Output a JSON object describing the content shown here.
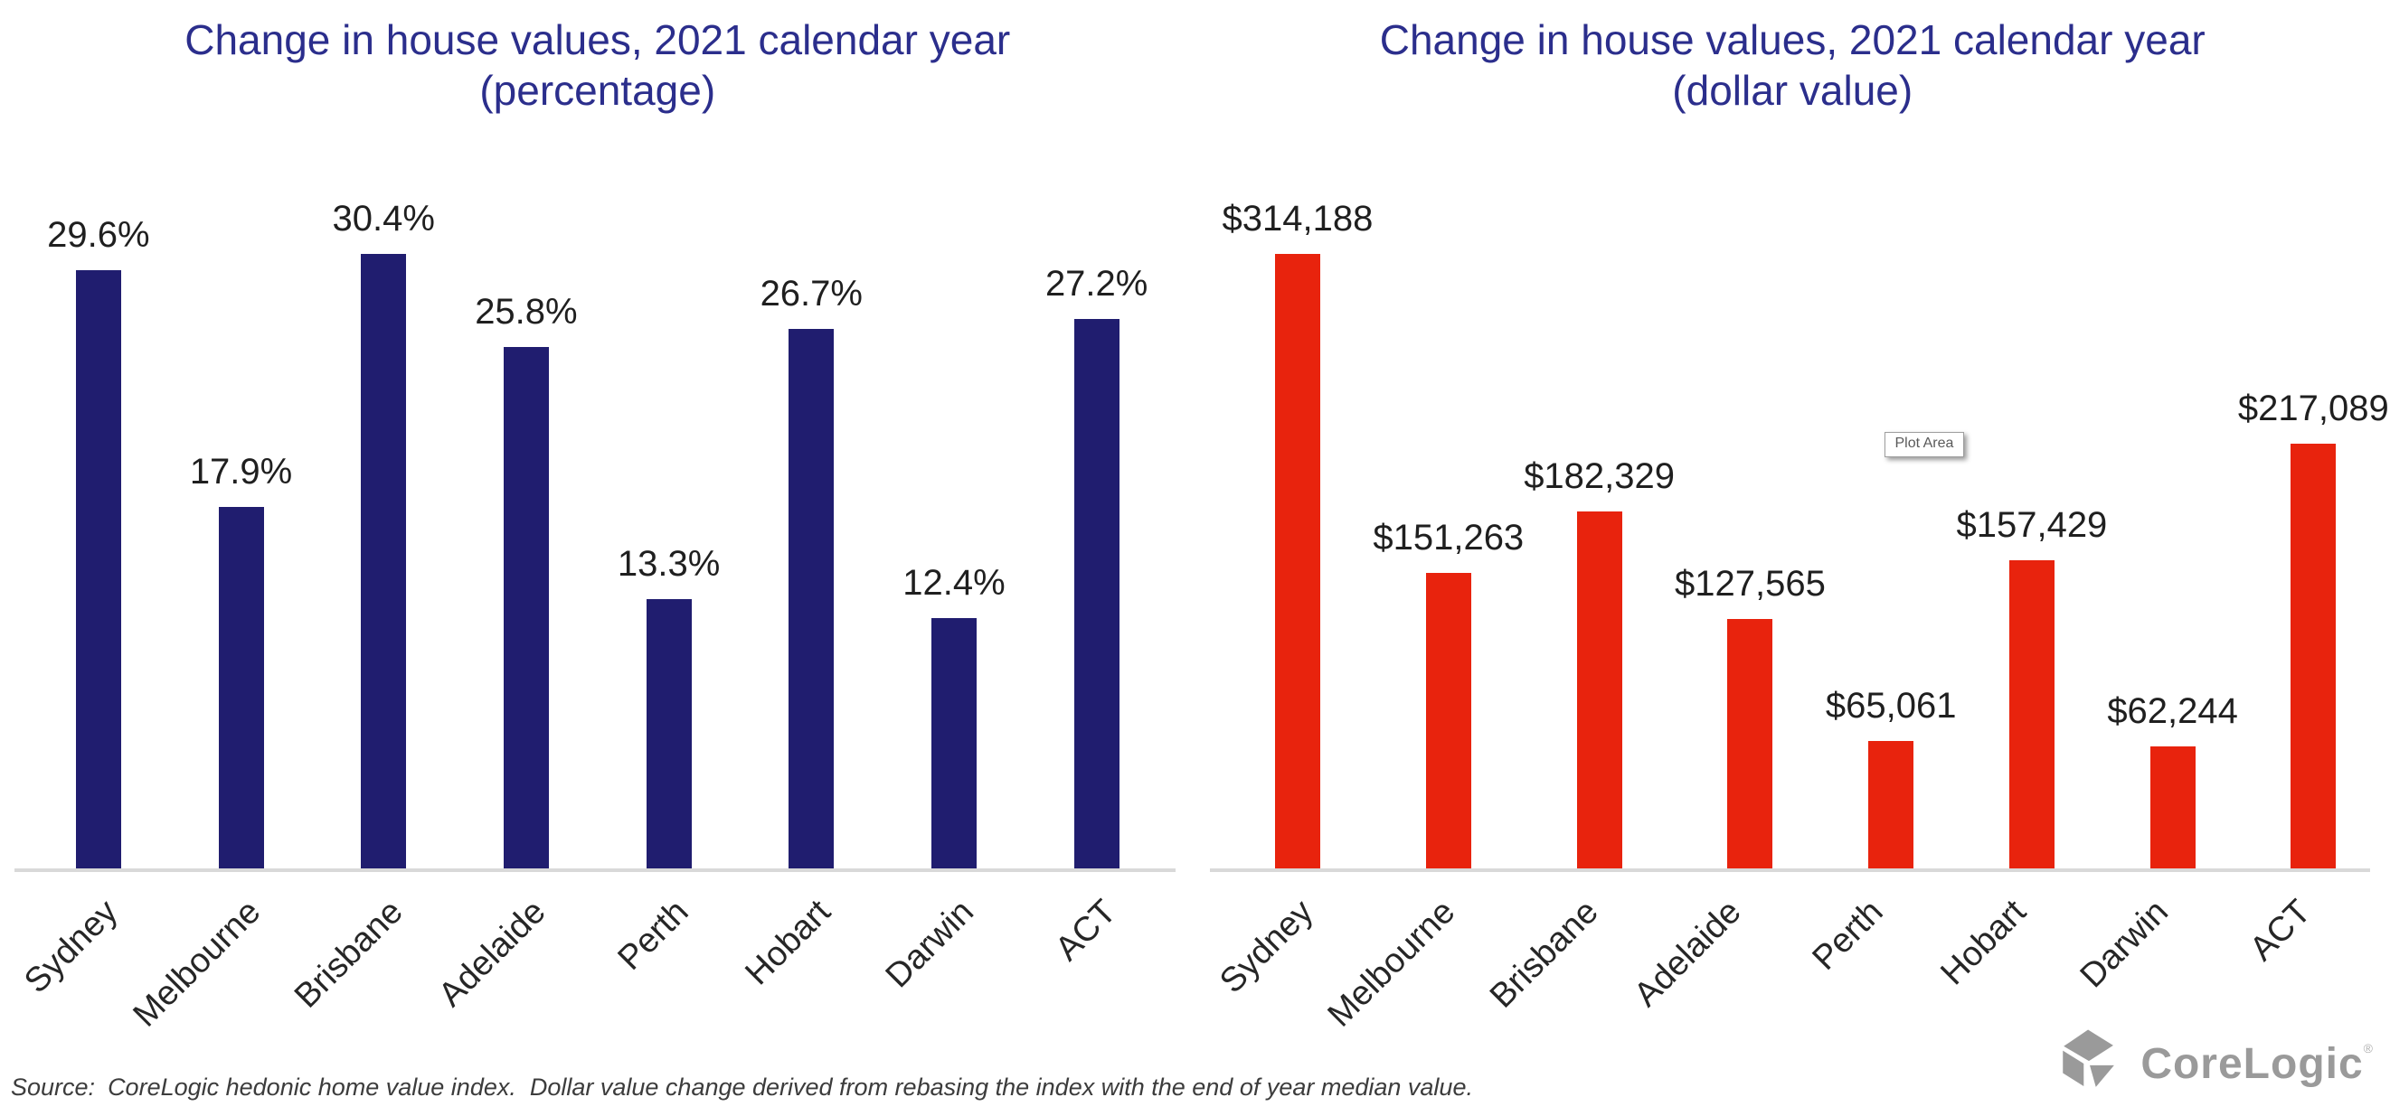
{
  "colors": {
    "title_navy": "#2b2e8c",
    "bar_navy": "#201d6f",
    "bar_red": "#e8230d",
    "axis_line": "#d9d9d9",
    "data_label": "#1f1f1f",
    "source_text": "#3c3c3c",
    "logo_gray": "#9a9a9a"
  },
  "chart_data": [
    {
      "type": "bar",
      "title": "Change in house values, 2021 calendar year",
      "subtitle": "(percentage)",
      "categories": [
        "Sydney",
        "Melbourne",
        "Brisbane",
        "Adelaide",
        "Perth",
        "Hobart",
        "Darwin",
        "ACT"
      ],
      "values": [
        29.6,
        17.9,
        30.4,
        25.8,
        13.3,
        26.7,
        12.4,
        27.2
      ],
      "labels": [
        "29.6%",
        "17.9%",
        "30.4%",
        "25.8%",
        "13.3%",
        "26.7%",
        "12.4%",
        "27.2%"
      ],
      "unit": "percent",
      "bar_color": "#201d6f",
      "ylim": [
        0,
        30.4
      ],
      "grid": false,
      "legend": "none",
      "category_label_rotation": 45
    },
    {
      "type": "bar",
      "title": "Change in house values, 2021 calendar year",
      "subtitle": "(dollar value)",
      "categories": [
        "Sydney",
        "Melbourne",
        "Brisbane",
        "Adelaide",
        "Perth",
        "Hobart",
        "Darwin",
        "ACT"
      ],
      "values": [
        314188,
        151263,
        182329,
        127565,
        65061,
        157429,
        62244,
        217089
      ],
      "labels": [
        "$314,188",
        "$151,263",
        "$182,329",
        "$127,565",
        "$65,061",
        "$157,429",
        "$62,244",
        "$217,089"
      ],
      "unit": "dollars",
      "bar_color": "#e8230d",
      "ylim": [
        0,
        314188
      ],
      "grid": false,
      "legend": "none",
      "category_label_rotation": 45,
      "tooltip": "Plot Area"
    }
  ],
  "footer": {
    "source_prefix": "Source:",
    "source_text": "CoreLogic hedonic home value index.  Dollar value change derived from rebasing the index with the end of year median value."
  },
  "logo": {
    "text": "CoreLogic",
    "registered": "®"
  }
}
